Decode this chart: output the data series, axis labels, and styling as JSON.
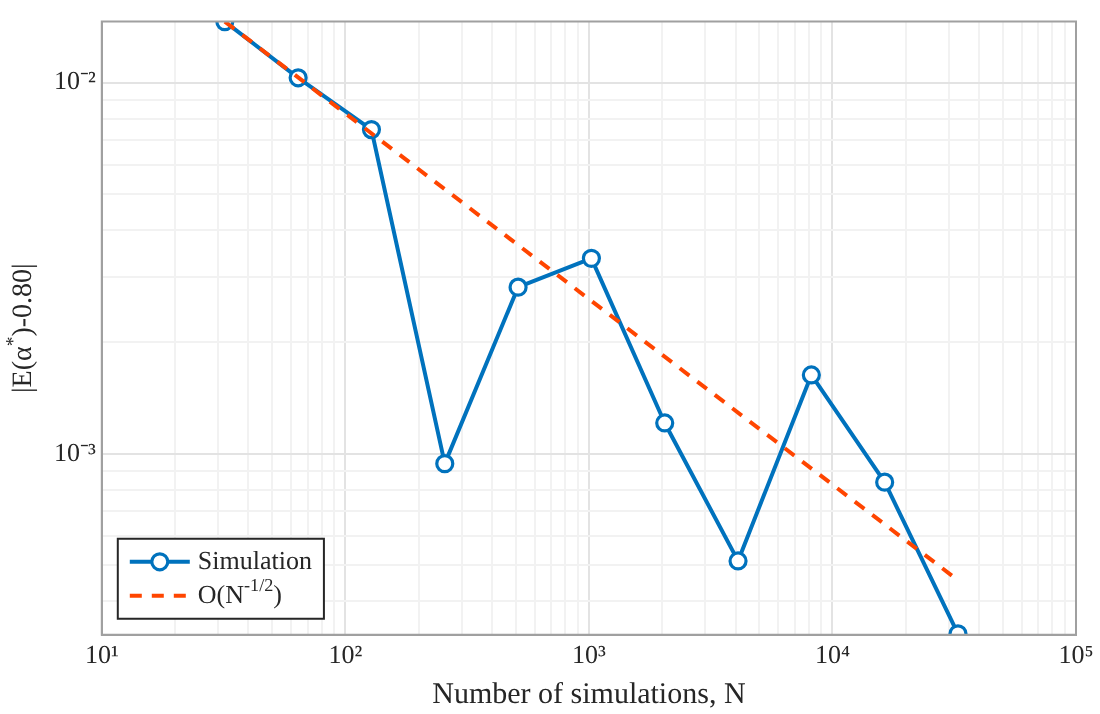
{
  "chart_data": {
    "type": "line",
    "xlabel": "Number of simulations, N",
    "ylabel": "|E(α$^{*}$)-0.80|",
    "log": "xy",
    "grid": true,
    "legend": "bottom left",
    "xlim": [
      10,
      100000
    ],
    "ylim": [
      0.000325,
      0.0146
    ],
    "xticks": [
      {
        "value": 10,
        "label": "10¹"
      },
      {
        "value": 20,
        "label": null
      },
      {
        "value": 30,
        "label": null
      },
      {
        "value": 40,
        "label": null
      },
      {
        "value": 50,
        "label": null
      },
      {
        "value": 60,
        "label": null
      },
      {
        "value": 70,
        "label": null
      },
      {
        "value": 80,
        "label": null
      },
      {
        "value": 90,
        "label": null
      },
      {
        "value": 100,
        "label": "10²"
      },
      {
        "value": 200,
        "label": null
      },
      {
        "value": 300,
        "label": null
      },
      {
        "value": 400,
        "label": null
      },
      {
        "value": 500,
        "label": null
      },
      {
        "value": 600,
        "label": null
      },
      {
        "value": 700,
        "label": null
      },
      {
        "value": 800,
        "label": null
      },
      {
        "value": 900,
        "label": null
      },
      {
        "value": 1000,
        "label": "10³"
      },
      {
        "value": 2000,
        "label": null
      },
      {
        "value": 3000,
        "label": null
      },
      {
        "value": 4000,
        "label": null
      },
      {
        "value": 5000,
        "label": null
      },
      {
        "value": 6000,
        "label": null
      },
      {
        "value": 7000,
        "label": null
      },
      {
        "value": 8000,
        "label": null
      },
      {
        "value": 9000,
        "label": null
      },
      {
        "value": 10000,
        "label": "10⁴"
      },
      {
        "value": 20000,
        "label": null
      },
      {
        "value": 30000,
        "label": null
      },
      {
        "value": 40000,
        "label": null
      },
      {
        "value": 50000,
        "label": null
      },
      {
        "value": 60000,
        "label": null
      },
      {
        "value": 70000,
        "label": null
      },
      {
        "value": 80000,
        "label": null
      },
      {
        "value": 90000,
        "label": null
      },
      {
        "value": 100000,
        "label": "10⁵"
      }
    ],
    "yticks": [
      {
        "value": 0.0004,
        "label": null
      },
      {
        "value": 0.0005,
        "label": null
      },
      {
        "value": 0.0006,
        "label": null
      },
      {
        "value": 0.0007,
        "label": null
      },
      {
        "value": 0.0008,
        "label": null
      },
      {
        "value": 0.0009,
        "label": null
      },
      {
        "value": 0.001,
        "label": "10⁻³"
      },
      {
        "value": 0.002,
        "label": null
      },
      {
        "value": 0.003,
        "label": null
      },
      {
        "value": 0.004,
        "label": null
      },
      {
        "value": 0.005,
        "label": null
      },
      {
        "value": 0.006,
        "label": null
      },
      {
        "value": 0.007,
        "label": null
      },
      {
        "value": 0.008,
        "label": null
      },
      {
        "value": 0.009,
        "label": null
      },
      {
        "value": 0.01,
        "label": "10⁻²"
      }
    ],
    "series": [
      {
        "name": "Simulation",
        "color": "#0072bd",
        "marker": "circle",
        "line_style": "solid",
        "x": [
          32,
          64,
          128,
          256,
          512,
          1024,
          2048,
          4096,
          8192,
          16384,
          32768
        ],
        "values": [
          0.0146,
          0.0103,
          0.00747,
          0.00094,
          0.00281,
          0.00336,
          0.00121,
          0.000514,
          0.00163,
          0.000838,
          0.000327
        ]
      },
      {
        "name": "O(N$^{-1/2}$)",
        "color": "#ff4500",
        "marker": "none",
        "line_style": "dashed",
        "x": [
          32,
          32768
        ],
        "values": [
          0.0146,
          0.000456
        ]
      }
    ]
  }
}
